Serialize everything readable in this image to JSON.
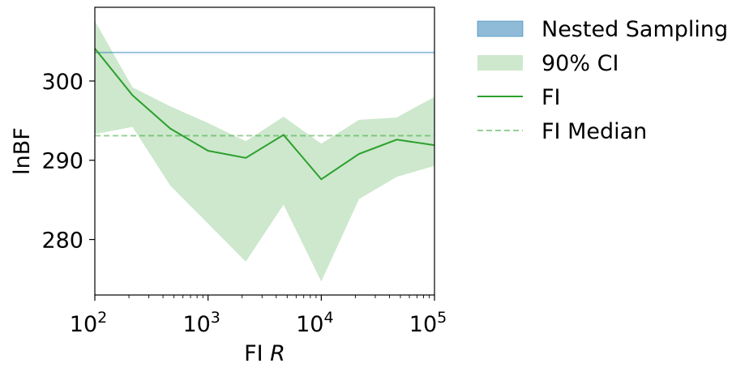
{
  "chart_data": {
    "type": "line",
    "xlabel": {
      "main": "FI ",
      "italic": "R"
    },
    "ylabel": "lnBF",
    "x_scale": "log",
    "xlim": [
      100,
      100000
    ],
    "ylim": [
      273,
      309.3
    ],
    "x_ticks": [
      {
        "value": 100,
        "base": "10",
        "exp": "2"
      },
      {
        "value": 1000,
        "base": "10",
        "exp": "3"
      },
      {
        "value": 10000,
        "base": "10",
        "exp": "4"
      },
      {
        "value": 100000,
        "base": "10",
        "exp": "5"
      }
    ],
    "y_ticks": [
      {
        "value": 280,
        "label": "280"
      },
      {
        "value": 290,
        "label": "290"
      },
      {
        "value": 300,
        "label": "300"
      }
    ],
    "grid": false,
    "legend_placement": "outside-right-top",
    "x": [
      100,
      215,
      464,
      1000,
      2154,
      4642,
      10000,
      21544,
      46416,
      100000
    ],
    "series": [
      {
        "name": "FI",
        "kind": "line",
        "values": [
          304.1,
          298.2,
          294.0,
          291.2,
          290.3,
          293.2,
          287.6,
          290.8,
          292.6,
          291.9
        ],
        "color": "#2ca02c"
      },
      {
        "name": "90% CI",
        "kind": "band",
        "upper": [
          307.6,
          299.2,
          296.8,
          294.7,
          292.4,
          295.5,
          292.1,
          295.1,
          295.4,
          298.0
        ],
        "lower": [
          293.3,
          294.2,
          286.8,
          282.0,
          277.2,
          284.4,
          274.7,
          285.1,
          287.9,
          289.3
        ],
        "color": "#2ca02c"
      },
      {
        "name": "Nested Sampling",
        "kind": "hline",
        "value": 303.6,
        "color": "#1f77b4"
      },
      {
        "name": "FI Median",
        "kind": "hline-dashed",
        "value": 293.1,
        "color": "#2ca02c"
      }
    ]
  },
  "legend": {
    "items": [
      {
        "label": "Nested Sampling",
        "swatch": "patch",
        "color": "#1f77b4"
      },
      {
        "label": "90% CI",
        "swatch": "patch",
        "color": "#2ca02c"
      },
      {
        "label": "FI",
        "swatch": "line",
        "color": "#2ca02c"
      },
      {
        "label": "FI Median",
        "swatch": "dashed",
        "color": "#2ca02c"
      }
    ]
  }
}
